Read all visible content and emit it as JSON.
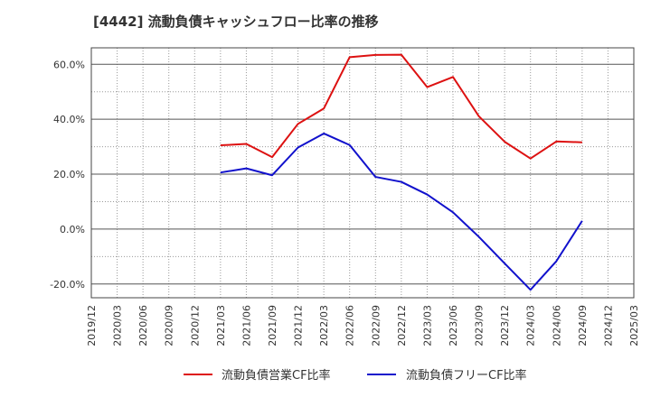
{
  "chart_data": {
    "type": "line",
    "title": "[4442]  流動負債キャッシュフロー比率の推移",
    "xlabel": "",
    "ylabel": "",
    "x": [
      "2019/12",
      "2020/03",
      "2020/06",
      "2020/09",
      "2020/12",
      "2021/03",
      "2021/06",
      "2021/09",
      "2021/12",
      "2022/03",
      "2022/06",
      "2022/09",
      "2022/12",
      "2023/03",
      "2023/06",
      "2023/09",
      "2023/12",
      "2024/03",
      "2024/06",
      "2024/09",
      "2024/12",
      "2025/03"
    ],
    "ylim": [
      -25,
      66
    ],
    "yticks": [
      -20,
      0,
      20,
      40,
      60
    ],
    "ytick_labels": [
      "-20.0%",
      "0.0%",
      "20.0%",
      "40.0%",
      "60.0%"
    ],
    "grid": true,
    "legend_position": "bottom",
    "series": [
      {
        "name": "流動負債営業CF比率",
        "color": "#dd1111",
        "values": [
          null,
          null,
          null,
          null,
          null,
          30.5,
          31.0,
          26.2,
          38.3,
          43.9,
          62.6,
          63.4,
          63.5,
          51.7,
          55.4,
          41.1,
          31.8,
          25.7,
          31.9,
          31.6,
          null,
          null
        ]
      },
      {
        "name": "流動負債フリーCF比率",
        "color": "#1111cc",
        "values": [
          null,
          null,
          null,
          null,
          null,
          20.6,
          22.1,
          19.6,
          29.7,
          34.8,
          30.6,
          19.0,
          17.2,
          12.6,
          6.1,
          -2.8,
          -12.5,
          -22.1,
          -11.7,
          3.0,
          null,
          null
        ]
      }
    ]
  }
}
